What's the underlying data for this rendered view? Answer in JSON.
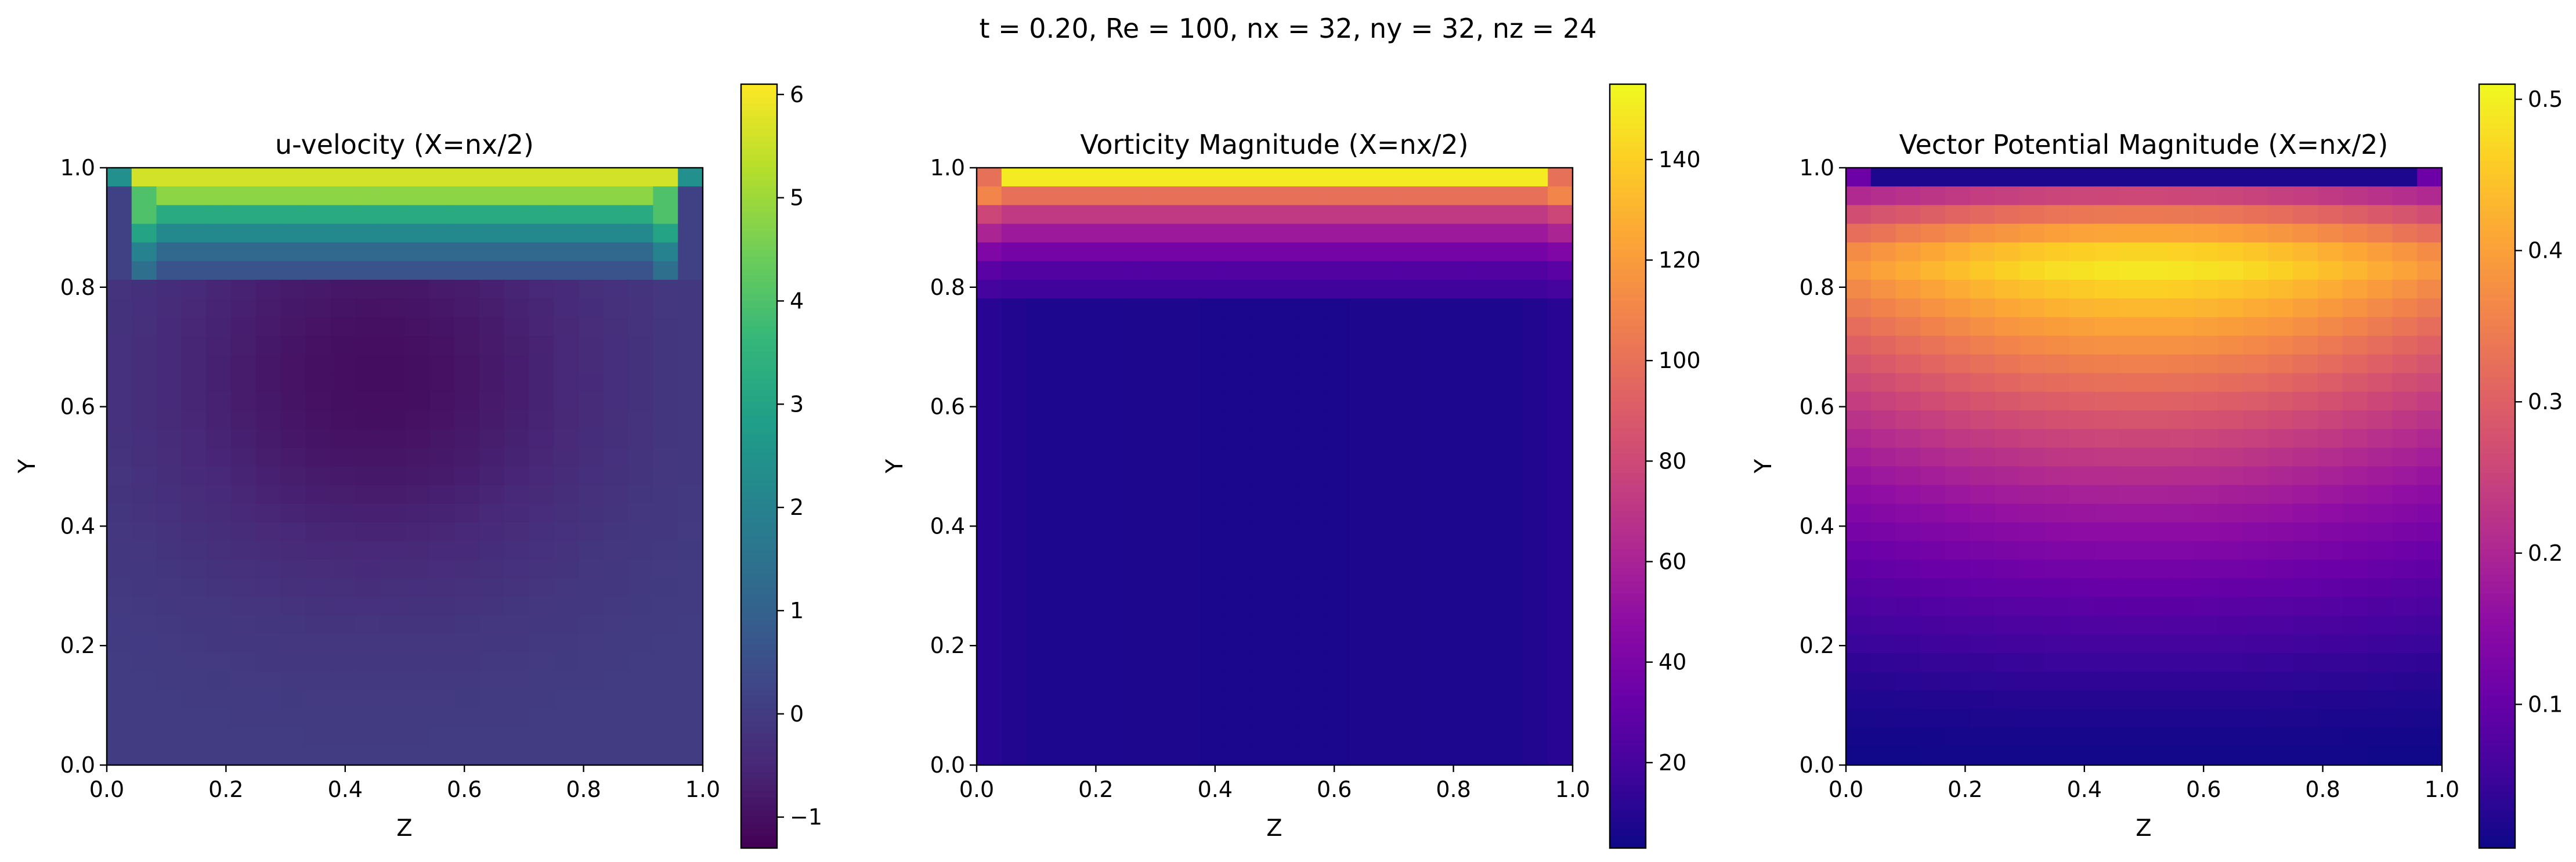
{
  "figure": {
    "suptitle": "t = 0.20, Re = 100, nx = 32, ny = 32, nz = 24"
  },
  "chart_data": [
    {
      "type": "heatmap",
      "title": "u-velocity (X=nx/2)",
      "xlabel": "Z",
      "ylabel": "Y",
      "xlim": [
        0.0,
        1.0
      ],
      "ylim": [
        0.0,
        1.0
      ],
      "xticks": [
        "0.0",
        "0.2",
        "0.4",
        "0.6",
        "0.8",
        "1.0"
      ],
      "yticks": [
        "0.0",
        "0.2",
        "0.4",
        "0.6",
        "0.8",
        "1.0"
      ],
      "grid_cols": 24,
      "grid_rows": 32,
      "colormap": "viridis",
      "clim": [
        -1.3,
        6.1
      ],
      "colorbar_ticks": [
        "−1",
        "0",
        "1",
        "2",
        "3",
        "4",
        "5",
        "6"
      ],
      "colorbar_tick_values": [
        -1,
        0,
        1,
        2,
        3,
        4,
        5,
        6
      ],
      "field_profile": {
        "lid_value": 5.6,
        "lid_corner_value": 2.4,
        "near_lid_rows": [
          4.8,
          3.2,
          2.2,
          1.2,
          0.6
        ],
        "vortex_center": [
          0.45,
          0.65
        ],
        "vortex_min": -1.05,
        "wall_value": 0.05
      }
    },
    {
      "type": "heatmap",
      "title": "Vorticity Magnitude (X=nx/2)",
      "xlabel": "Z",
      "ylabel": "Y",
      "xlim": [
        0.0,
        1.0
      ],
      "ylim": [
        0.0,
        1.0
      ],
      "xticks": [
        "0.0",
        "0.2",
        "0.4",
        "0.6",
        "0.8",
        "1.0"
      ],
      "yticks": [
        "0.0",
        "0.2",
        "0.4",
        "0.6",
        "0.8",
        "1.0"
      ],
      "grid_cols": 24,
      "grid_rows": 32,
      "colormap": "plasma",
      "clim": [
        3,
        155
      ],
      "colorbar_ticks": [
        "20",
        "40",
        "60",
        "80",
        "100",
        "120",
        "140"
      ],
      "colorbar_tick_values": [
        20,
        40,
        60,
        80,
        100,
        120,
        140
      ],
      "field_profile": {
        "lid_value": 150,
        "lid_corner_value": 100,
        "near_lid_rows": [
          100,
          72,
          55,
          38,
          25,
          18
        ],
        "interior_value": 7
      }
    },
    {
      "type": "heatmap",
      "title": "Vector Potential Magnitude (X=nx/2)",
      "xlabel": "Z",
      "ylabel": "Y",
      "xlim": [
        0.0,
        1.0
      ],
      "ylim": [
        0.0,
        1.0
      ],
      "xticks": [
        "0.0",
        "0.2",
        "0.4",
        "0.6",
        "0.8",
        "1.0"
      ],
      "yticks": [
        "0.0",
        "0.2",
        "0.4",
        "0.6",
        "0.8",
        "1.0"
      ],
      "grid_cols": 24,
      "grid_rows": 32,
      "colormap": "plasma",
      "clim": [
        0.005,
        0.51
      ],
      "colorbar_ticks": [
        "0.1",
        "0.2",
        "0.3",
        "0.4",
        "0.5"
      ],
      "colorbar_tick_values": [
        0.1,
        0.2,
        0.3,
        0.4,
        0.5
      ],
      "field_profile": {
        "peak_value": 0.5,
        "peak_y": 0.84,
        "lid_value": 0.02,
        "bottom_value": 0.02
      }
    }
  ]
}
